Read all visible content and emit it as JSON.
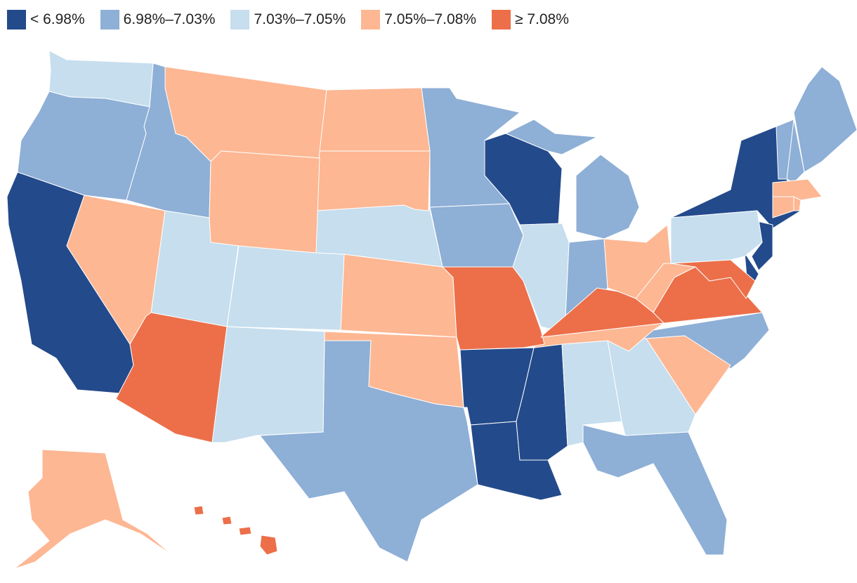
{
  "legend": [
    {
      "label": "< 6.98%",
      "color": "#234a8b"
    },
    {
      "label": "6.98%–7.03%",
      "color": "#8eafd6"
    },
    {
      "label": "7.03%–7.05%",
      "color": "#c6deee"
    },
    {
      "label": "7.05%–7.08%",
      "color": "#fdb793"
    },
    {
      "label": "≥ 7.08%",
      "color": "#ec6f4a"
    }
  ],
  "states": [
    {
      "id": "CA",
      "bin": 0
    },
    {
      "id": "WI",
      "bin": 0
    },
    {
      "id": "AR",
      "bin": 0
    },
    {
      "id": "LA",
      "bin": 0
    },
    {
      "id": "MS",
      "bin": 0
    },
    {
      "id": "NY",
      "bin": 0
    },
    {
      "id": "NJ",
      "bin": 0
    },
    {
      "id": "DE",
      "bin": 0
    },
    {
      "id": "OR",
      "bin": 1
    },
    {
      "id": "ID",
      "bin": 1
    },
    {
      "id": "MN",
      "bin": 1
    },
    {
      "id": "IA",
      "bin": 1
    },
    {
      "id": "TX",
      "bin": 1
    },
    {
      "id": "MI",
      "bin": 1
    },
    {
      "id": "IN",
      "bin": 1
    },
    {
      "id": "NC",
      "bin": 1
    },
    {
      "id": "FL",
      "bin": 1
    },
    {
      "id": "ME",
      "bin": 1
    },
    {
      "id": "NH",
      "bin": 1
    },
    {
      "id": "VT",
      "bin": 1
    },
    {
      "id": "WA",
      "bin": 2
    },
    {
      "id": "UT",
      "bin": 2
    },
    {
      "id": "CO",
      "bin": 2
    },
    {
      "id": "NM",
      "bin": 2
    },
    {
      "id": "NE",
      "bin": 2
    },
    {
      "id": "IL",
      "bin": 2
    },
    {
      "id": "AL",
      "bin": 2
    },
    {
      "id": "GA",
      "bin": 2
    },
    {
      "id": "PA",
      "bin": 2
    },
    {
      "id": "MT",
      "bin": 3
    },
    {
      "id": "ND",
      "bin": 3
    },
    {
      "id": "SD",
      "bin": 3
    },
    {
      "id": "WY",
      "bin": 3
    },
    {
      "id": "NV",
      "bin": 3
    },
    {
      "id": "KS",
      "bin": 3
    },
    {
      "id": "OK",
      "bin": 3
    },
    {
      "id": "OH",
      "bin": 3
    },
    {
      "id": "WV",
      "bin": 3
    },
    {
      "id": "TN",
      "bin": 3
    },
    {
      "id": "SC",
      "bin": 3
    },
    {
      "id": "MA",
      "bin": 3
    },
    {
      "id": "CT",
      "bin": 3
    },
    {
      "id": "RI",
      "bin": 3
    },
    {
      "id": "AK",
      "bin": 3
    },
    {
      "id": "AZ",
      "bin": 4
    },
    {
      "id": "MO",
      "bin": 4
    },
    {
      "id": "KY",
      "bin": 4
    },
    {
      "id": "VA",
      "bin": 4
    },
    {
      "id": "MD",
      "bin": 4
    },
    {
      "id": "HI",
      "bin": 4
    }
  ]
}
